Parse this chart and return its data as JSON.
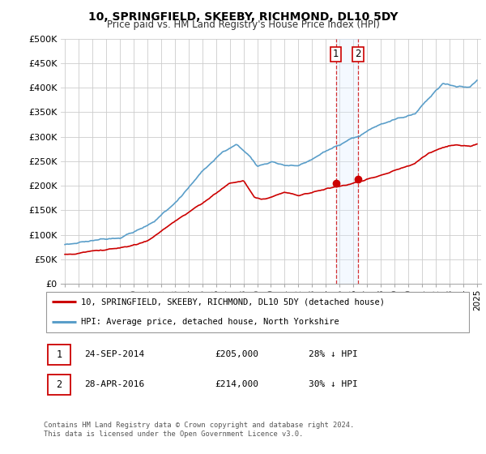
{
  "title": "10, SPRINGFIELD, SKEEBY, RICHMOND, DL10 5DY",
  "subtitle": "Price paid vs. HM Land Registry's House Price Index (HPI)",
  "ylim": [
    0,
    500000
  ],
  "yticks": [
    0,
    50000,
    100000,
    150000,
    200000,
    250000,
    300000,
    350000,
    400000,
    450000,
    500000
  ],
  "ytick_labels": [
    "£0",
    "£50K",
    "£100K",
    "£150K",
    "£200K",
    "£250K",
    "£300K",
    "£350K",
    "£400K",
    "£450K",
    "£500K"
  ],
  "hpi_color": "#5a9ec9",
  "price_color": "#cc0000",
  "annotation_box_color": "#cc0000",
  "shaded_region_color": "#ddeeff",
  "transactions": [
    {
      "date": 2014.73,
      "price": 205000,
      "label": "1"
    },
    {
      "date": 2016.33,
      "price": 214000,
      "label": "2"
    }
  ],
  "legend_entries": [
    {
      "label": "10, SPRINGFIELD, SKEEBY, RICHMOND, DL10 5DY (detached house)",
      "color": "#cc0000"
    },
    {
      "label": "HPI: Average price, detached house, North Yorkshire",
      "color": "#5a9ec9"
    }
  ],
  "table_rows": [
    {
      "num": "1",
      "date": "24-SEP-2014",
      "price": "£205,000",
      "hpi": "28% ↓ HPI"
    },
    {
      "num": "2",
      "date": "28-APR-2016",
      "price": "£214,000",
      "hpi": "30% ↓ HPI"
    }
  ],
  "footnote": "Contains HM Land Registry data © Crown copyright and database right 2024.\nThis data is licensed under the Open Government Licence v3.0.",
  "background_color": "#ffffff",
  "grid_color": "#cccccc"
}
